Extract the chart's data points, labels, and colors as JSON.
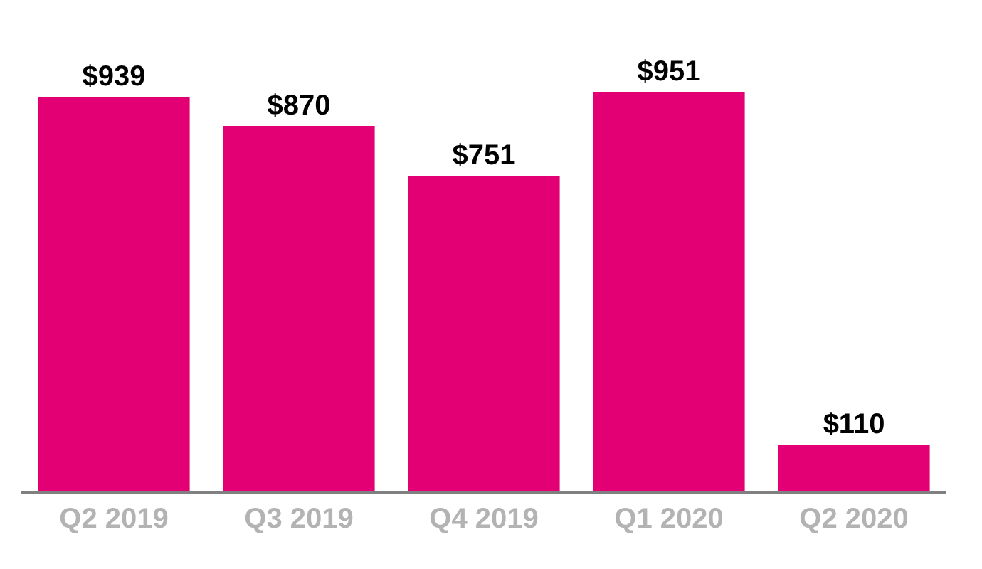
{
  "chart_data": {
    "type": "bar",
    "categories": [
      "Q2 2019",
      "Q3 2019",
      "Q4 2019",
      "Q1 2020",
      "Q2 2020"
    ],
    "values": [
      939,
      870,
      751,
      951,
      110
    ],
    "value_labels": [
      "$939",
      "$870",
      "$751",
      "$951",
      "$110"
    ],
    "color": "#e20074"
  }
}
